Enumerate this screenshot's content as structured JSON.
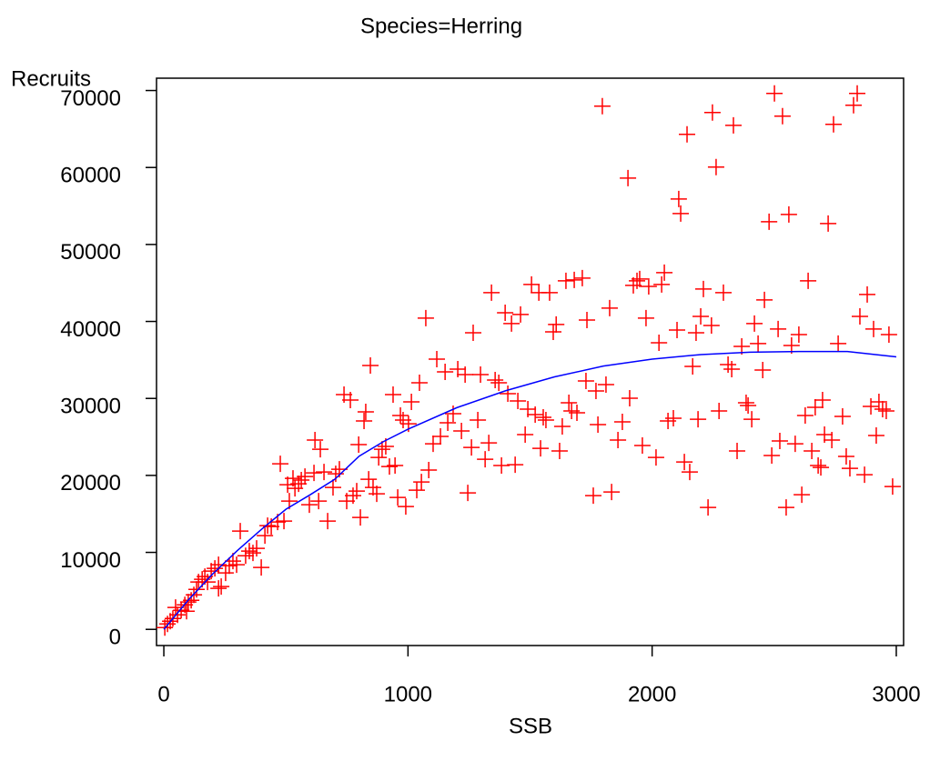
{
  "chart_data": {
    "type": "scatter",
    "title": "Species=Herring",
    "x_label": "SSB",
    "y_label": "Recruits",
    "xlim": [
      -30,
      3030
    ],
    "ylim": [
      -2100,
      71600
    ],
    "xticks": [
      0,
      1000,
      2000,
      3000
    ],
    "yticks": [
      0,
      10000,
      20000,
      30000,
      40000,
      50000,
      60000,
      70000
    ],
    "series": [
      {
        "type": "scatter",
        "color": "#ff0000",
        "x": [
          4,
          15,
          26,
          37,
          56,
          48,
          71,
          86,
          100,
          112,
          93,
          123,
          134,
          142,
          157,
          168,
          179,
          194,
          209,
          224,
          235,
          224,
          253,
          268,
          283,
          298,
          313,
          335,
          350,
          365,
          380,
          399,
          414,
          425,
          440,
          466,
          477,
          492,
          507,
          514,
          529,
          537,
          552,
          563,
          578,
          596,
          615,
          634,
          619,
          641,
          656,
          671,
          693,
          704,
          719,
          738,
          749,
          764,
          775,
          790,
          798,
          805,
          820,
          827,
          839,
          846,
          857,
          872,
          880,
          894,
          909,
          924,
          939,
          947,
          958,
          969,
          980,
          991,
          1002,
          1014,
          1036,
          1047,
          1055,
          1073,
          1085,
          1103,
          1118,
          1133,
          1152,
          1163,
          1185,
          1204,
          1219,
          1234,
          1245,
          1260,
          1267,
          1286,
          1297,
          1316,
          1331,
          1342,
          1357,
          1372,
          1383,
          1398,
          1409,
          1424,
          1439,
          1450,
          1461,
          1480,
          1491,
          1506,
          1521,
          1536,
          1543,
          1554,
          1565,
          1580,
          1595,
          1607,
          1621,
          1632,
          1647,
          1659,
          1670,
          1681,
          1692,
          1714,
          1729,
          1733,
          1759,
          1770,
          1778,
          1796,
          1811,
          1826,
          1834,
          1860,
          1878,
          1901,
          1908,
          1923,
          1938,
          1949,
          1960,
          1975,
          1986,
          2016,
          2028,
          2039,
          2050,
          2065,
          2087,
          2102,
          2109,
          2117,
          2132,
          2143,
          2154,
          2166,
          2180,
          2188,
          2199,
          2210,
          2229,
          2243,
          2247,
          2262,
          2274,
          2292,
          2311,
          2326,
          2333,
          2348,
          2367,
          2385,
          2393,
          2408,
          2419,
          2434,
          2453,
          2460,
          2479,
          2490,
          2501,
          2516,
          2523,
          2534,
          2549,
          2560,
          2571,
          2586,
          2601,
          2613,
          2627,
          2639,
          2654,
          2668,
          2680,
          2691,
          2698,
          2706,
          2721,
          2736,
          2743,
          2762,
          2780,
          2795,
          2810,
          2825,
          2840,
          2851,
          2870,
          2881,
          2896,
          2907,
          2918,
          2929,
          2944,
          2959,
          2970,
          2985
        ],
        "values": [
          240,
          700,
          1060,
          1420,
          1890,
          2840,
          2480,
          3190,
          3550,
          3780,
          2360,
          4490,
          5200,
          6150,
          6500,
          6860,
          6150,
          7570,
          7920,
          8390,
          5560,
          5320,
          7330,
          8270,
          8870,
          8390,
          12770,
          9570,
          10170,
          9930,
          10520,
          8040,
          12180,
          13470,
          13360,
          13950,
          21510,
          14070,
          18790,
          16670,
          19620,
          18320,
          18910,
          19390,
          19860,
          16190,
          20330,
          16670,
          24590,
          23400,
          20450,
          14070,
          18440,
          20210,
          20800,
          30500,
          16670,
          29790,
          17380,
          17970,
          24000,
          14540,
          27070,
          28250,
          19500,
          34280,
          18440,
          17610,
          22340,
          23400,
          23760,
          21160,
          30500,
          21280,
          17140,
          27780,
          27190,
          15960,
          26710,
          29550,
          18080,
          32030,
          19150,
          40430,
          20690,
          24110,
          35110,
          25060,
          33450,
          26830,
          28020,
          33810,
          25770,
          33100,
          17730,
          23640,
          38530,
          27190,
          33100,
          22100,
          24230,
          43740,
          32390,
          32030,
          21280,
          41130,
          30610,
          39720,
          21390,
          29670,
          40900,
          25300,
          28610,
          44800,
          27900,
          43740,
          23520,
          27540,
          27190,
          43740,
          38650,
          39600,
          23170,
          26360,
          45270,
          29430,
          28370,
          45390,
          28130,
          45630,
          32270,
          40190,
          17380,
          30970,
          26600,
          67970,
          31800,
          41730,
          17850,
          24590,
          26950,
          58630,
          30020,
          44680,
          45270,
          45510,
          23880,
          40430,
          44560,
          22340,
          37230,
          44800,
          46340,
          27070,
          27420,
          38890,
          55910,
          54020,
          21750,
          64300,
          20450,
          34160,
          38530,
          27300,
          40660,
          44210,
          15840,
          39480,
          67140,
          60050,
          28370,
          43740,
          34400,
          33810,
          65480,
          23170,
          36760,
          29430,
          29080,
          27300,
          39720,
          37120,
          33690,
          42790,
          52960,
          22580,
          69620,
          39010,
          24470,
          66670,
          15840,
          53900,
          36880,
          24110,
          38300,
          17490,
          27780,
          45270,
          23170,
          28840,
          21280,
          21040,
          29790,
          25300,
          52720,
          24590,
          65600,
          37120,
          27660,
          22460,
          20920,
          68090,
          69620,
          40660,
          20090,
          43500,
          28960,
          39010,
          25180,
          29550,
          28610,
          28370,
          38300,
          18560
        ]
      },
      {
        "type": "line",
        "color": "#0000ff",
        "x": [
          0,
          100,
          200,
          300,
          400,
          500,
          600,
          700,
          800,
          900,
          1000,
          1200,
          1400,
          1600,
          1800,
          2000,
          2200,
          2400,
          2600,
          2800,
          3000
        ],
        "values": [
          0,
          3800,
          7200,
          10200,
          13000,
          15600,
          17500,
          19500,
          22500,
          24400,
          26000,
          28800,
          31000,
          32800,
          34200,
          35100,
          35700,
          36000,
          36100,
          36100,
          35400
        ]
      }
    ]
  }
}
